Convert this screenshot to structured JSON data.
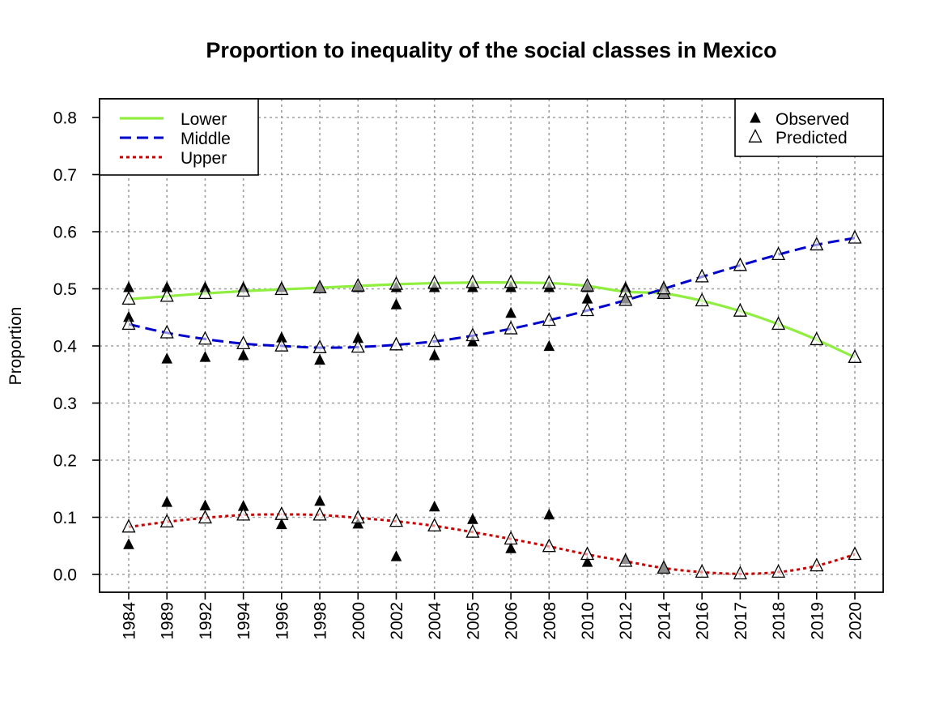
{
  "chart_data": {
    "type": "line",
    "title": "Proportion to inequality of the social classes in Mexico",
    "xlabel": "",
    "ylabel": "Proportion",
    "ylim": [
      0,
      0.8
    ],
    "y_ticks": [
      "0.0",
      "0.1",
      "0.2",
      "0.3",
      "0.4",
      "0.5",
      "0.6",
      "0.7",
      "0.8"
    ],
    "grid": true,
    "categories": [
      "1984",
      "1989",
      "1992",
      "1994",
      "1996",
      "1998",
      "2000",
      "2002",
      "2004",
      "2005",
      "2006",
      "2008",
      "2010",
      "2012",
      "2014",
      "2016",
      "2017",
      "2018",
      "2019",
      "2020"
    ],
    "series": [
      {
        "name": "Lower",
        "color": "#90EE40",
        "line_style": "solid",
        "predicted": [
          0.482,
          0.487,
          0.492,
          0.496,
          0.499,
          0.502,
          0.505,
          0.508,
          0.51,
          0.511,
          0.511,
          0.51,
          0.505,
          0.495,
          0.492,
          0.479,
          0.461,
          0.438,
          0.411,
          0.38
        ],
        "observed": [
          0.502,
          0.502,
          0.502,
          0.502,
          0.502,
          0.502,
          0.502,
          0.502,
          0.502,
          0.502,
          0.502,
          0.502,
          0.502,
          0.502,
          0.502,
          null,
          null,
          null,
          null,
          null
        ]
      },
      {
        "name": "Middle",
        "color": "#0000CD",
        "line_style": "dashed",
        "predicted": [
          0.438,
          0.423,
          0.412,
          0.404,
          0.4,
          0.397,
          0.398,
          0.402,
          0.408,
          0.418,
          0.43,
          0.445,
          0.462,
          0.48,
          0.5,
          0.521,
          0.541,
          0.56,
          0.577,
          0.589
        ],
        "observed": [
          0.45,
          0.377,
          0.38,
          0.383,
          0.414,
          0.375,
          0.413,
          0.472,
          0.383,
          0.407,
          0.457,
          0.399,
          0.482,
          0.482,
          0.492,
          null,
          null,
          null,
          null,
          null
        ]
      },
      {
        "name": "Upper",
        "color": "#CC0000",
        "line_style": "dotted",
        "predicted": [
          0.083,
          0.092,
          0.099,
          0.104,
          0.105,
          0.104,
          0.099,
          0.093,
          0.085,
          0.074,
          0.062,
          0.049,
          0.035,
          0.023,
          0.011,
          0.004,
          0.001,
          0.004,
          0.015,
          0.035
        ],
        "observed": [
          0.052,
          0.126,
          0.12,
          0.119,
          0.087,
          0.128,
          0.088,
          0.031,
          0.118,
          0.096,
          0.045,
          0.104,
          0.021,
          0.026,
          0.011,
          null,
          null,
          null,
          null,
          null
        ]
      }
    ],
    "legend_lines": {
      "position": "top-left",
      "entries": [
        "Lower",
        "Middle",
        "Upper"
      ]
    },
    "legend_markers": {
      "position": "top-right",
      "entries": [
        {
          "label": "Observed",
          "marker": "filled-triangle"
        },
        {
          "label": "Predicted",
          "marker": "open-triangle"
        }
      ]
    }
  }
}
